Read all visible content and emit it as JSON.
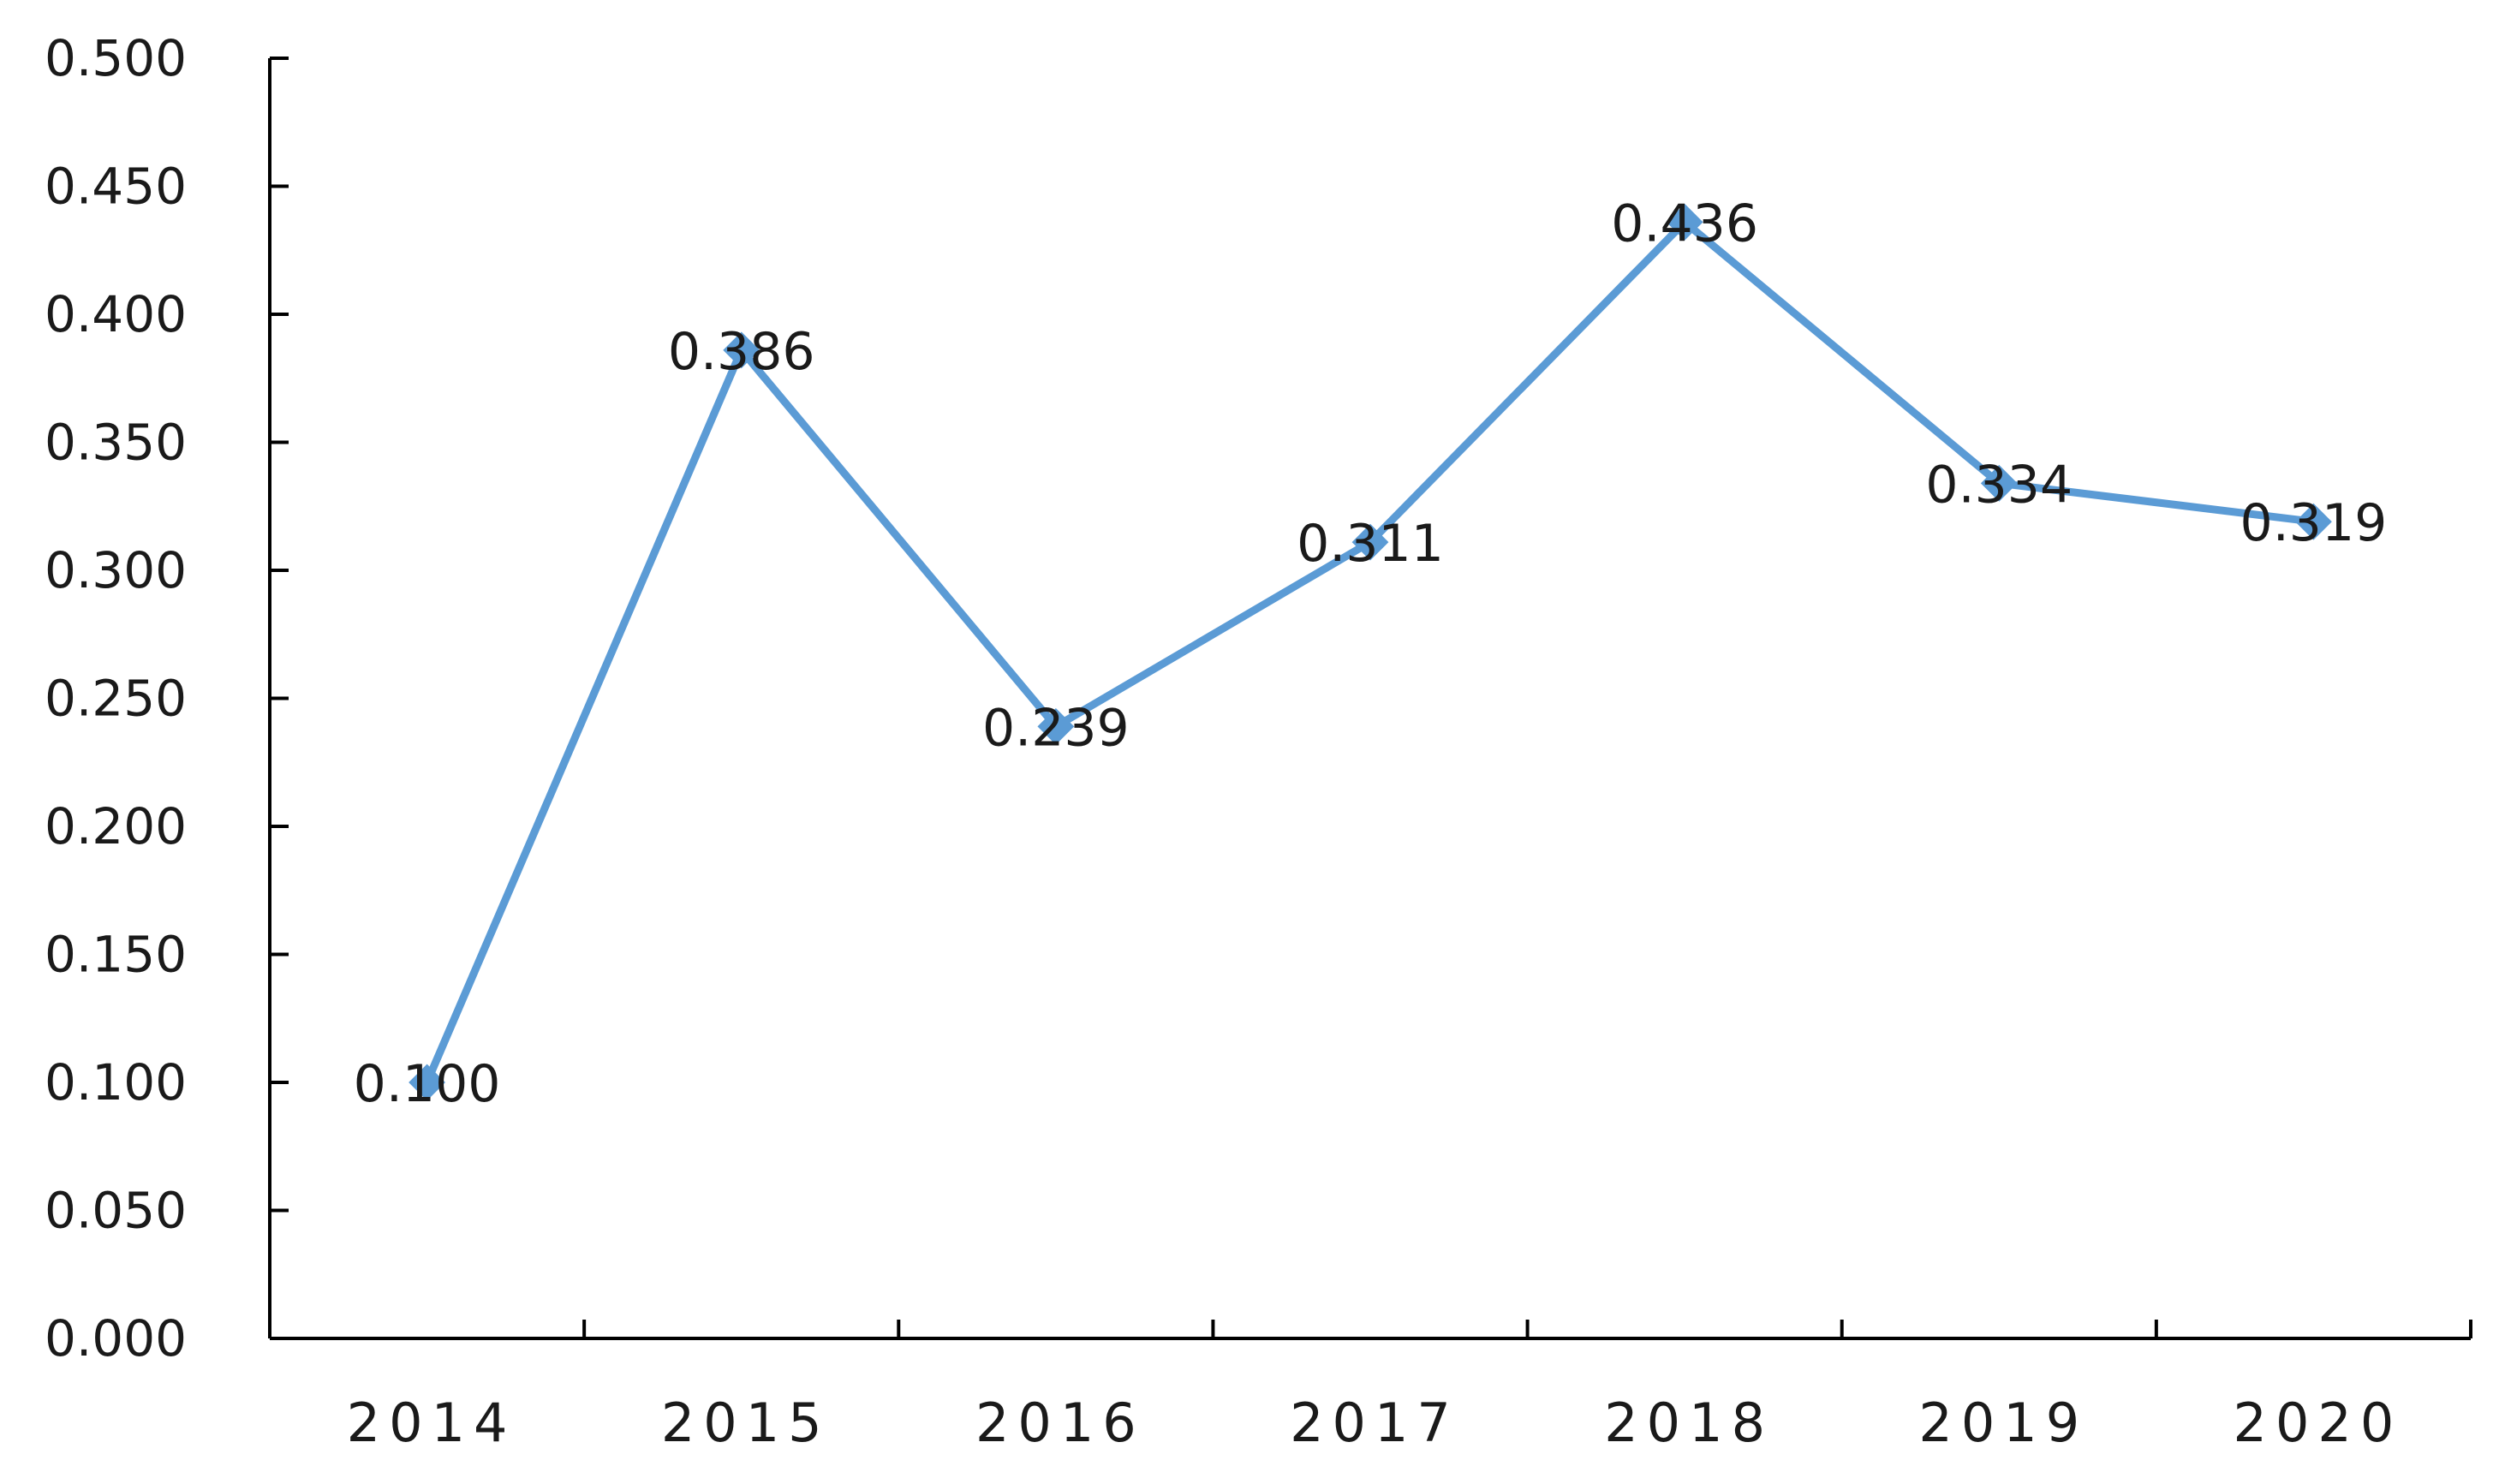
{
  "chart_data": {
    "type": "line",
    "title": "",
    "xlabel": "",
    "ylabel": "",
    "categories": [
      "2014",
      "2015",
      "2016",
      "2017",
      "2018",
      "2019",
      "2020"
    ],
    "series": [
      {
        "values": [
          0.1,
          0.386,
          0.239,
          0.311,
          0.436,
          0.334,
          0.319
        ],
        "labels": [
          "0.100",
          "0.386",
          "0.239",
          "0.311",
          "0.436",
          "0.334",
          "0.319"
        ],
        "color": "#5b9bd5",
        "marker": "diamond"
      }
    ],
    "ylim": [
      0,
      0.5
    ],
    "yticks": [
      0,
      0.05,
      0.1,
      0.15,
      0.2,
      0.25,
      0.3,
      0.35,
      0.4,
      0.45,
      0.5
    ],
    "ytick_labels": [
      "0.000",
      "0.050",
      "0.100",
      "0.150",
      "0.200",
      "0.250",
      "0.300",
      "0.350",
      "0.400",
      "0.450",
      "0.500"
    ],
    "grid": false,
    "legend": "none",
    "axis_color": "#000000",
    "text_color": "#1a1a1a"
  }
}
